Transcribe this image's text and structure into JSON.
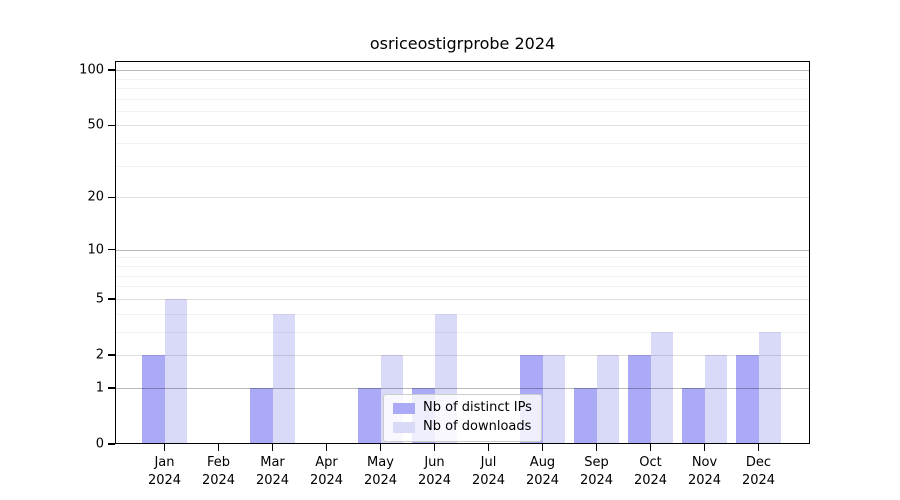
{
  "chart_data": {
    "type": "bar",
    "title": "osriceostigrprobe 2024",
    "categories": [
      "Jan",
      "Feb",
      "Mar",
      "Apr",
      "May",
      "Jun",
      "Jul",
      "Aug",
      "Sep",
      "Oct",
      "Nov",
      "Dec"
    ],
    "category_year": "2024",
    "series": [
      {
        "name": "Nb of distinct IPs",
        "color": "#aaaaf6",
        "values": [
          2,
          0,
          1,
          0,
          1,
          1,
          0,
          2,
          1,
          2,
          1,
          2
        ]
      },
      {
        "name": "Nb of downloads",
        "color": "#d9d9f8",
        "values": [
          5,
          0,
          4,
          0,
          2,
          4,
          0,
          2,
          2,
          3,
          2,
          3
        ]
      }
    ],
    "yaxis": {
      "scale": "log1p",
      "ylim": [
        0,
        112
      ],
      "tick_labels": [
        "100",
        "50",
        "20",
        "10",
        "5",
        "2",
        "1",
        "0"
      ],
      "ticks": [
        100,
        50,
        20,
        10,
        5,
        2,
        1,
        0
      ],
      "decade_ticks": [
        1,
        10,
        100
      ],
      "minor_ticks": [
        3,
        4,
        6,
        7,
        8,
        9,
        30,
        40,
        60,
        70,
        80,
        90
      ]
    },
    "grid": true,
    "legend_position": "inside-bottom-center"
  }
}
